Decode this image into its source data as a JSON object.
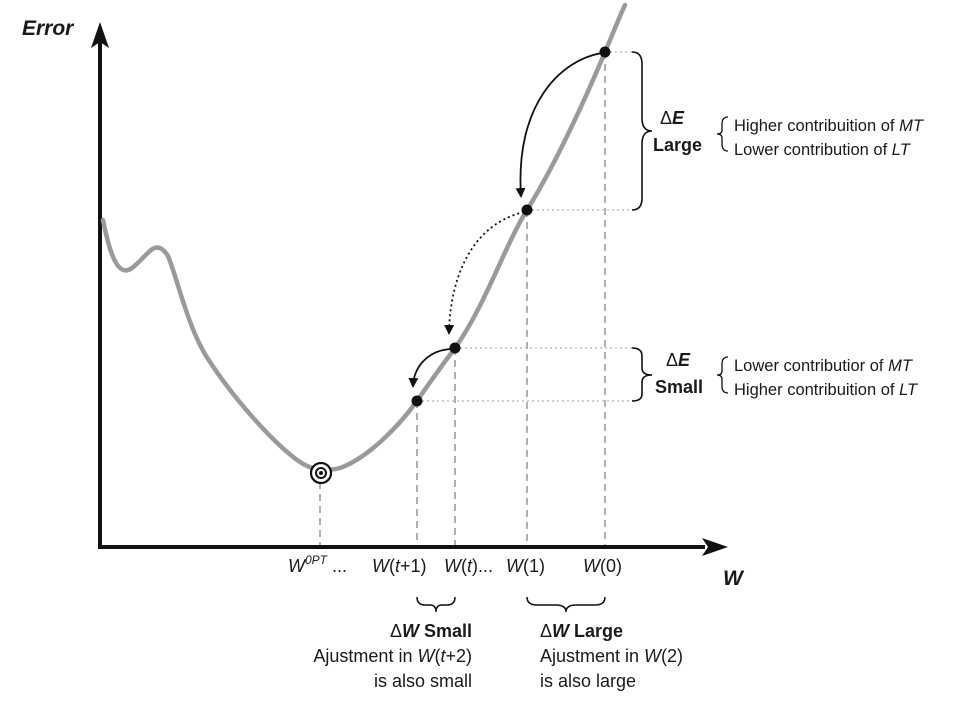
{
  "axes": {
    "y_title": "Error",
    "x_title": "W"
  },
  "ticks": {
    "wopt": {
      "base": "W",
      "sup": "0PT",
      "suffix": " ..."
    },
    "wt1": {
      "w": "W",
      "open": "(",
      "t": "t",
      "rest": "+1)"
    },
    "wt": {
      "w": "W",
      "open": "(",
      "t": "t",
      "rest": ")..."
    },
    "w1": {
      "w": "W",
      "rest": "(1)"
    },
    "w0": {
      "w": "W",
      "rest": "(0)"
    }
  },
  "delta_e_large": {
    "delta": "Δ",
    "e": "E",
    "size": "Large",
    "line1_text": "Higher contribuition of ",
    "line1_term": "MT",
    "line2_text": "Lower contribution of ",
    "line2_term": "LT"
  },
  "delta_e_small": {
    "delta": "Δ",
    "e": "E",
    "size": "Small",
    "line1_text": "Lower  contributior of ",
    "line1_term": "MT",
    "line2_text": "Higher contribuition of ",
    "line2_term": "LT"
  },
  "delta_w_small": {
    "delta": "Δ",
    "w": "W",
    "size": " Small",
    "line2_text": "Ajustment in ",
    "line2_w": "W",
    "line2_open": "(",
    "line2_t": "t",
    "line2_rest": "+2)",
    "line3": "is also small"
  },
  "delta_w_large": {
    "delta": "Δ",
    "w": "W",
    "size": " Large",
    "line2_text": "Ajustment in ",
    "line2_w": "W",
    "line2_rest": "(2)",
    "line3": "is also large"
  },
  "colors": {
    "curve": "#9a9a9a",
    "axis": "#111111",
    "guides": "#b0b0b0",
    "points": "#111111"
  }
}
